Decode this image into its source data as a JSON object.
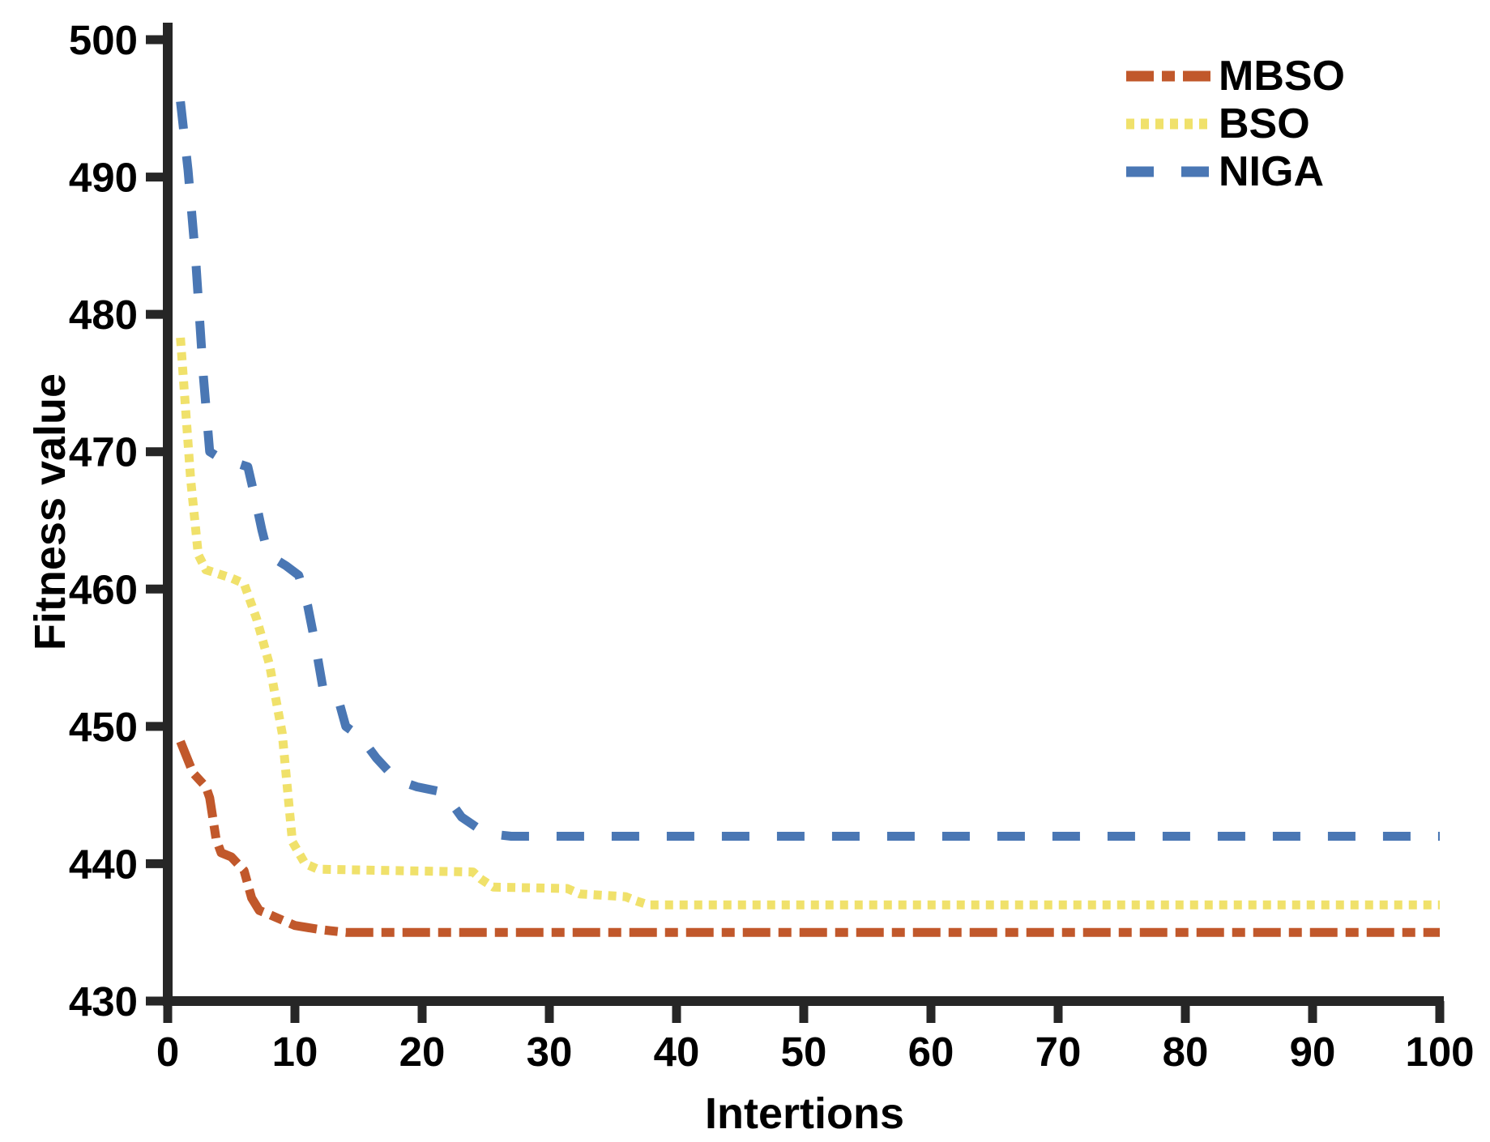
{
  "figure": {
    "background": "#ffffff"
  },
  "chart_data": {
    "type": "line",
    "title": "",
    "xlabel": "Intertions",
    "ylabel": "Fitness value",
    "xlim": [
      0,
      100
    ],
    "ylim": [
      430,
      500
    ],
    "x_ticks": [
      0,
      10,
      20,
      30,
      40,
      50,
      60,
      70,
      80,
      90,
      100
    ],
    "y_ticks": [
      430,
      440,
      450,
      460,
      470,
      480,
      490,
      500
    ],
    "grid": false,
    "legend_position": "top-right",
    "axis_color": "#262626",
    "tick_label_color": "#000000",
    "series": [
      {
        "name": "MBSO",
        "color": "#C1582B",
        "line_style": "dash-dot",
        "points": [
          [
            1,
            448.9
          ],
          [
            2,
            446.6
          ],
          [
            3,
            445.6
          ],
          [
            3.3,
            444.8
          ],
          [
            3.8,
            441.8
          ],
          [
            4.2,
            440.8
          ],
          [
            5,
            440.5
          ],
          [
            6,
            439.5
          ],
          [
            6.6,
            437.5
          ],
          [
            7.2,
            436.6
          ],
          [
            8,
            436.3
          ],
          [
            9,
            435.9
          ],
          [
            10,
            435.5
          ],
          [
            12,
            435.2
          ],
          [
            14,
            435.0
          ],
          [
            100,
            435.0
          ]
        ]
      },
      {
        "name": "BSO",
        "color": "#F0E16B",
        "line_style": "dotted",
        "points": [
          [
            1,
            478.3
          ],
          [
            1.8,
            468.0
          ],
          [
            2.4,
            462.5
          ],
          [
            3,
            461.4
          ],
          [
            4,
            461.1
          ],
          [
            5,
            460.8
          ],
          [
            6,
            460.4
          ],
          [
            7,
            457.8
          ],
          [
            8,
            454.5
          ],
          [
            9,
            449.5
          ],
          [
            9.8,
            441.6
          ],
          [
            10.8,
            440.0
          ],
          [
            11.8,
            439.6
          ],
          [
            24,
            439.4
          ],
          [
            24.6,
            438.9
          ],
          [
            25.6,
            438.3
          ],
          [
            31.4,
            438.2
          ],
          [
            32.4,
            437.8
          ],
          [
            36,
            437.6
          ],
          [
            36.8,
            437.3
          ],
          [
            37.8,
            437.0
          ],
          [
            100,
            437.0
          ]
        ]
      },
      {
        "name": "NIGA",
        "color": "#4A77B4",
        "line_style": "dashed",
        "points": [
          [
            1,
            495.5
          ],
          [
            1.6,
            490.5
          ],
          [
            2.2,
            484.0
          ],
          [
            2.8,
            475.5
          ],
          [
            3.3,
            470.0
          ],
          [
            4,
            469.6
          ],
          [
            6.3,
            468.9
          ],
          [
            6.9,
            466.5
          ],
          [
            7.4,
            464.3
          ],
          [
            7.9,
            462.5
          ],
          [
            9.3,
            461.7
          ],
          [
            10.3,
            461.0
          ],
          [
            11,
            458.8
          ],
          [
            11.6,
            456.0
          ],
          [
            12.2,
            452.8
          ],
          [
            13.4,
            452.0
          ],
          [
            14,
            450.0
          ],
          [
            15.2,
            449.2
          ],
          [
            16.4,
            447.7
          ],
          [
            18,
            446.1
          ],
          [
            19.6,
            445.6
          ],
          [
            21.7,
            445.2
          ],
          [
            23.1,
            443.4
          ],
          [
            25,
            442.2
          ],
          [
            27,
            442.0
          ],
          [
            100,
            442.0
          ]
        ]
      }
    ]
  }
}
